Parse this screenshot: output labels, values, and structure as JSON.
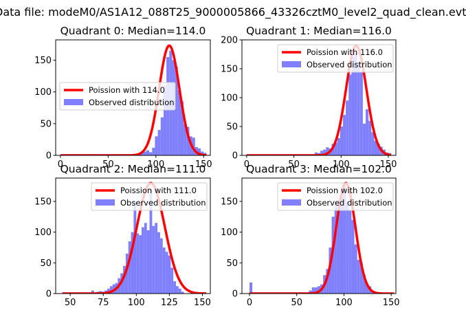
{
  "figure_title": "Data file: modeM0/AS1A12_088T25_9000005866_43326cztM0_level2_quad_clean.evt",
  "chart_data": [
    {
      "type": "bar",
      "title": "Quadrant 0: Median=114.0",
      "xlim": [
        -5,
        157
      ],
      "ylim": [
        0,
        182
      ],
      "xticks": [
        0,
        50,
        100,
        150
      ],
      "yticks": [
        0,
        50,
        100,
        150
      ],
      "poisson": {
        "name": "Poission with 114.0",
        "mean": 114.0,
        "peak": 173,
        "color": "#ff0000"
      },
      "histogram": {
        "name": "Observed distribution",
        "color": "#8080ff",
        "bins": [
          [
            0,
            2
          ],
          [
            3,
            2
          ],
          [
            6,
            2
          ],
          [
            9,
            2
          ],
          [
            12,
            2
          ],
          [
            15,
            2
          ],
          [
            18,
            2
          ],
          [
            21,
            2
          ],
          [
            24,
            2
          ],
          [
            27,
            2
          ],
          [
            30,
            2
          ],
          [
            33,
            2
          ],
          [
            36,
            2
          ],
          [
            39,
            2
          ],
          [
            42,
            2
          ],
          [
            45,
            2
          ],
          [
            48,
            2
          ],
          [
            51,
            2
          ],
          [
            54,
            2
          ],
          [
            57,
            2
          ],
          [
            60,
            2
          ],
          [
            63,
            2
          ],
          [
            66,
            2
          ],
          [
            69,
            2
          ],
          [
            72,
            2
          ],
          [
            75,
            2
          ],
          [
            78,
            2
          ],
          [
            81,
            3
          ],
          [
            84,
            5
          ],
          [
            87,
            6
          ],
          [
            90,
            8
          ],
          [
            93,
            5
          ],
          [
            96,
            12
          ],
          [
            99,
            30
          ],
          [
            102,
            40
          ],
          [
            105,
            60
          ],
          [
            108,
            110
          ],
          [
            111,
            155
          ],
          [
            114,
            165
          ],
          [
            117,
            150
          ],
          [
            120,
            140
          ],
          [
            123,
            103
          ],
          [
            126,
            85
          ],
          [
            129,
            50
          ],
          [
            132,
            45
          ],
          [
            135,
            30
          ],
          [
            138,
            28
          ],
          [
            141,
            13
          ],
          [
            144,
            11
          ],
          [
            147,
            6
          ],
          [
            150,
            4
          ]
        ]
      },
      "legend_position": "center-left"
    },
    {
      "type": "bar",
      "title": "Quadrant 1: Median=116.0",
      "xlim": [
        -5,
        158
      ],
      "ylim": [
        0,
        200
      ],
      "xticks": [
        0,
        50,
        100,
        150
      ],
      "yticks": [
        0,
        50,
        100,
        150,
        200
      ],
      "poisson": {
        "name": "Poission with 116.0",
        "mean": 116.0,
        "peak": 190,
        "color": "#ff0000"
      },
      "histogram": {
        "name": "Observed distribution",
        "color": "#8080ff",
        "bins": [
          [
            0,
            2
          ],
          [
            3,
            2
          ],
          [
            6,
            2
          ],
          [
            9,
            2
          ],
          [
            12,
            2
          ],
          [
            15,
            2
          ],
          [
            18,
            2
          ],
          [
            21,
            2
          ],
          [
            24,
            2
          ],
          [
            27,
            2
          ],
          [
            30,
            2
          ],
          [
            33,
            2
          ],
          [
            36,
            2
          ],
          [
            39,
            2
          ],
          [
            42,
            2
          ],
          [
            45,
            2
          ],
          [
            48,
            2
          ],
          [
            51,
            2
          ],
          [
            54,
            2
          ],
          [
            57,
            2
          ],
          [
            60,
            2
          ],
          [
            63,
            2
          ],
          [
            66,
            2
          ],
          [
            69,
            2
          ],
          [
            72,
            5
          ],
          [
            75,
            4
          ],
          [
            78,
            8
          ],
          [
            81,
            10
          ],
          [
            84,
            14
          ],
          [
            87,
            12
          ],
          [
            90,
            20
          ],
          [
            93,
            22
          ],
          [
            96,
            30
          ],
          [
            99,
            50
          ],
          [
            102,
            70
          ],
          [
            105,
            95
          ],
          [
            108,
            140
          ],
          [
            111,
            170
          ],
          [
            114,
            178
          ],
          [
            117,
            160
          ],
          [
            120,
            145
          ],
          [
            123,
            55
          ],
          [
            126,
            80
          ],
          [
            129,
            60
          ],
          [
            132,
            40
          ],
          [
            135,
            25
          ],
          [
            138,
            20
          ],
          [
            141,
            15
          ],
          [
            144,
            10
          ],
          [
            147,
            5
          ],
          [
            150,
            4
          ]
        ]
      },
      "legend_position": "upper right"
    },
    {
      "type": "bar",
      "title": "Quadrant 2: Median=111.0",
      "xlim": [
        39,
        156
      ],
      "ylim": [
        0,
        188
      ],
      "xticks": [
        50,
        75,
        100,
        125,
        150
      ],
      "yticks": [
        0,
        50,
        100,
        150
      ],
      "poisson": {
        "name": "Poission with 111.0",
        "mean": 111.0,
        "peak": 180,
        "color": "#ff0000"
      },
      "histogram": {
        "name": "Observed distribution",
        "color": "#8080ff",
        "bins": [
          [
            44,
            2
          ],
          [
            46,
            2
          ],
          [
            48,
            2
          ],
          [
            50,
            2
          ],
          [
            52,
            2
          ],
          [
            54,
            2
          ],
          [
            56,
            2
          ],
          [
            58,
            2
          ],
          [
            60,
            2
          ],
          [
            62,
            2
          ],
          [
            64,
            2
          ],
          [
            66,
            5
          ],
          [
            68,
            2
          ],
          [
            70,
            3
          ],
          [
            72,
            4
          ],
          [
            74,
            3
          ],
          [
            76,
            5
          ],
          [
            78,
            8
          ],
          [
            80,
            12
          ],
          [
            82,
            15
          ],
          [
            84,
            17
          ],
          [
            86,
            25
          ],
          [
            88,
            33
          ],
          [
            90,
            45
          ],
          [
            92,
            65
          ],
          [
            94,
            85
          ],
          [
            96,
            100
          ],
          [
            98,
            150
          ],
          [
            100,
            98
          ],
          [
            102,
            95
          ],
          [
            104,
            108
          ],
          [
            106,
            115
          ],
          [
            108,
            103
          ],
          [
            110,
            170
          ],
          [
            112,
            110
          ],
          [
            114,
            115
          ],
          [
            116,
            100
          ],
          [
            118,
            90
          ],
          [
            120,
            75
          ],
          [
            122,
            68
          ],
          [
            124,
            62
          ],
          [
            126,
            42
          ],
          [
            128,
            20
          ],
          [
            130,
            12
          ],
          [
            132,
            8
          ],
          [
            134,
            3
          ]
        ]
      },
      "legend_position": "upper right"
    },
    {
      "type": "bar",
      "title": "Quadrant 3: Median=102.0",
      "xlim": [
        -8,
        155
      ],
      "ylim": [
        0,
        188
      ],
      "xticks": [
        0,
        50,
        100,
        150
      ],
      "yticks": [
        0,
        50,
        100,
        150
      ],
      "poisson": {
        "name": "Poission with 102.0",
        "mean": 102.0,
        "peak": 180,
        "color": "#ff0000"
      },
      "histogram": {
        "name": "Observed distribution",
        "color": "#8080ff",
        "bins": [
          [
            0,
            18
          ],
          [
            3,
            2
          ],
          [
            6,
            2
          ],
          [
            9,
            2
          ],
          [
            12,
            2
          ],
          [
            15,
            2
          ],
          [
            18,
            2
          ],
          [
            21,
            2
          ],
          [
            24,
            2
          ],
          [
            27,
            2
          ],
          [
            30,
            2
          ],
          [
            33,
            2
          ],
          [
            36,
            2
          ],
          [
            39,
            2
          ],
          [
            42,
            2
          ],
          [
            45,
            2
          ],
          [
            48,
            2
          ],
          [
            51,
            2
          ],
          [
            54,
            2
          ],
          [
            57,
            2
          ],
          [
            60,
            2
          ],
          [
            63,
            5
          ],
          [
            66,
            10
          ],
          [
            69,
            10
          ],
          [
            72,
            12
          ],
          [
            75,
            15
          ],
          [
            78,
            30
          ],
          [
            81,
            40
          ],
          [
            84,
            75
          ],
          [
            87,
            125
          ],
          [
            90,
            150
          ],
          [
            93,
            135
          ],
          [
            96,
            158
          ],
          [
            99,
            180
          ],
          [
            102,
            150
          ],
          [
            105,
            135
          ],
          [
            108,
            120
          ],
          [
            111,
            80
          ],
          [
            114,
            55
          ],
          [
            117,
            50
          ],
          [
            120,
            30
          ],
          [
            123,
            15
          ],
          [
            126,
            12
          ],
          [
            129,
            2
          ]
        ]
      },
      "legend_position": "upper right"
    }
  ]
}
